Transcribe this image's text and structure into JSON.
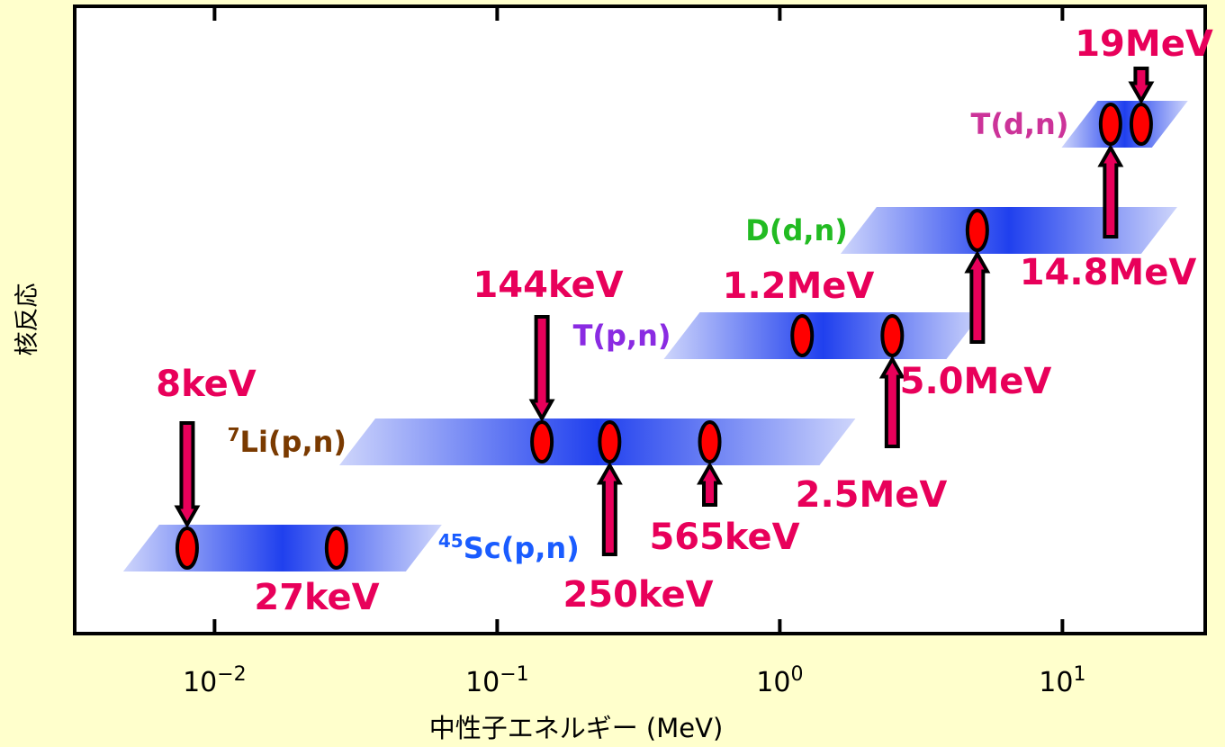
{
  "chart_data": {
    "type": "scatter",
    "xlabel": "中性子エネルギー (MeV)",
    "ylabel": "核反応",
    "x_scale": "log",
    "xlim": [
      0.0032,
      32
    ],
    "x_ticks": [
      {
        "value": 0.01,
        "base": "10",
        "exp": "−2"
      },
      {
        "value": 0.1,
        "base": "10",
        "exp": "−1"
      },
      {
        "value": 1,
        "base": "10",
        "exp": "0"
      },
      {
        "value": 10,
        "base": "10",
        "exp": "1"
      }
    ],
    "colors": {
      "background": "#ffffcc",
      "plot_bg": "#ffffff",
      "point": "#ff0000",
      "arrow": "#e8005a",
      "energy_label": "#e8005a",
      "band": "#2040ee"
    },
    "reactions": [
      {
        "label_pre": "45",
        "label_main": "Sc(p,n)",
        "color": "#1a5cff",
        "label_side": "right",
        "band_range": [
          0.0055,
          0.055
        ]
      },
      {
        "label_pre": "7",
        "label_main": "Li(p,n)",
        "color": "#7a3a00",
        "label_side": "left",
        "band_range": [
          0.032,
          1.6
        ]
      },
      {
        "label_pre": "",
        "label_main": "T(p,n)",
        "color": "#8a2be2",
        "label_side": "left",
        "band_range": [
          0.45,
          4.5
        ]
      },
      {
        "label_pre": "",
        "label_main": "D(d,n)",
        "color": "#22bb22",
        "label_side": "left",
        "band_range": [
          1.9,
          22
        ]
      },
      {
        "label_pre": "",
        "label_main": "T(d,n)",
        "color": "#cc3399",
        "label_side": "left",
        "band_range": [
          11.5,
          24
        ]
      }
    ],
    "points": [
      {
        "reaction": 0,
        "energy_MeV": 0.008,
        "label": "8keV",
        "arrow": "down"
      },
      {
        "reaction": 0,
        "energy_MeV": 0.027,
        "label": "27keV",
        "arrow": "none"
      },
      {
        "reaction": 1,
        "energy_MeV": 0.144,
        "label": "144keV",
        "arrow": "down"
      },
      {
        "reaction": 1,
        "energy_MeV": 0.25,
        "label": "250keV",
        "arrow": "up"
      },
      {
        "reaction": 1,
        "energy_MeV": 0.565,
        "label": "565keV",
        "arrow": "up"
      },
      {
        "reaction": 2,
        "energy_MeV": 1.2,
        "label": "1.2MeV",
        "arrow": "none"
      },
      {
        "reaction": 2,
        "energy_MeV": 2.5,
        "label": "2.5MeV",
        "arrow": "up"
      },
      {
        "reaction": 3,
        "energy_MeV": 5.0,
        "label": "5.0MeV",
        "arrow": "up"
      },
      {
        "reaction": 4,
        "energy_MeV": 14.8,
        "label": "14.8MeV",
        "arrow": "up"
      },
      {
        "reaction": 4,
        "energy_MeV": 19,
        "label": "19MeV",
        "arrow": "down"
      }
    ]
  }
}
